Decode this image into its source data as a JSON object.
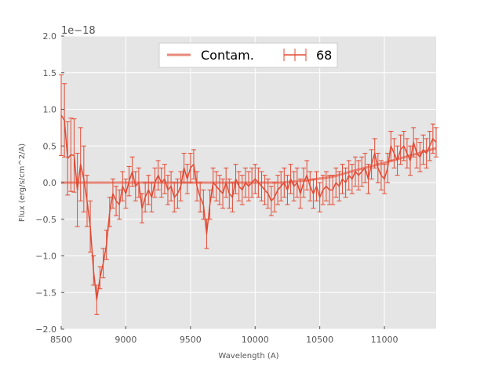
{
  "chart_data": {
    "type": "line",
    "title": "",
    "xlabel": "Wavelength (A)",
    "ylabel": "Flux (erg/s/cm^2/A)",
    "y_offset_label": "1e−18",
    "xlim": [
      8500,
      11400
    ],
    "ylim": [
      -2.0,
      2.0
    ],
    "x_ticks": [
      8500,
      9000,
      9500,
      10000,
      10500,
      11000
    ],
    "x_tick_labels": [
      "8500",
      "9000",
      "9500",
      "10000",
      "10500",
      "11000"
    ],
    "y_ticks": [
      -2.0,
      -1.5,
      -1.0,
      -0.5,
      0.0,
      0.5,
      1.0,
      1.5,
      2.0
    ],
    "y_tick_labels": [
      "−2.0",
      "−1.5",
      "−1.0",
      "−0.5",
      "0.0",
      "0.5",
      "1.0",
      "1.5",
      "2.0"
    ],
    "grid": true,
    "legend_position": "top-center",
    "colors": {
      "background": "#e5e5e5",
      "grid": "#ffffff",
      "contam": "#e8887a",
      "spectrum": "#e24a33"
    },
    "series": [
      {
        "name": "Contam.",
        "kind": "line",
        "x": [
          8500,
          10200,
          10400,
          10600,
          10800,
          11000,
          11200,
          11400
        ],
        "y": [
          0.0,
          0.0,
          0.03,
          0.08,
          0.18,
          0.27,
          0.37,
          0.47
        ]
      },
      {
        "name": "68",
        "kind": "errorbar",
        "x": [
          8500,
          8525,
          8550,
          8575,
          8600,
          8625,
          8650,
          8675,
          8700,
          8725,
          8750,
          8775,
          8800,
          8825,
          8850,
          8875,
          8900,
          8925,
          8950,
          8975,
          9000,
          9025,
          9050,
          9075,
          9100,
          9125,
          9150,
          9175,
          9200,
          9225,
          9250,
          9275,
          9300,
          9325,
          9350,
          9375,
          9400,
          9425,
          9450,
          9475,
          9500,
          9525,
          9550,
          9575,
          9600,
          9625,
          9650,
          9675,
          9700,
          9725,
          9750,
          9775,
          9800,
          9825,
          9850,
          9875,
          9900,
          9925,
          9950,
          9975,
          10000,
          10025,
          10050,
          10075,
          10100,
          10125,
          10150,
          10175,
          10200,
          10225,
          10250,
          10275,
          10300,
          10325,
          10350,
          10375,
          10400,
          10425,
          10450,
          10475,
          10500,
          10525,
          10550,
          10575,
          10600,
          10625,
          10650,
          10675,
          10700,
          10725,
          10750,
          10775,
          10800,
          10825,
          10850,
          10875,
          10900,
          10925,
          10950,
          10975,
          11000,
          11025,
          11050,
          11075,
          11100,
          11125,
          11150,
          11175,
          11200,
          11225,
          11250,
          11275,
          11300,
          11325,
          11350,
          11375,
          11400
        ],
        "y": [
          0.92,
          0.85,
          0.33,
          0.38,
          0.37,
          -0.1,
          0.25,
          0.05,
          -0.25,
          -0.6,
          -1.2,
          -1.6,
          -1.3,
          -1.1,
          -0.85,
          -0.4,
          -0.15,
          -0.25,
          -0.3,
          -0.05,
          -0.15,
          0.02,
          0.15,
          -0.05,
          0.0,
          -0.35,
          -0.2,
          -0.1,
          -0.2,
          0.0,
          0.1,
          0.0,
          0.05,
          -0.1,
          -0.05,
          -0.2,
          -0.15,
          -0.05,
          0.2,
          0.05,
          0.2,
          0.25,
          -0.05,
          -0.2,
          -0.3,
          -0.7,
          -0.3,
          0.0,
          -0.05,
          -0.1,
          -0.15,
          0.0,
          -0.15,
          -0.2,
          0.05,
          -0.05,
          -0.1,
          0.0,
          -0.05,
          0.0,
          0.05,
          0.0,
          -0.05,
          -0.1,
          -0.15,
          -0.25,
          -0.2,
          -0.1,
          -0.05,
          0.0,
          -0.1,
          0.05,
          -0.05,
          0.0,
          -0.15,
          0.0,
          0.1,
          -0.05,
          -0.15,
          -0.05,
          -0.2,
          -0.1,
          -0.05,
          -0.1,
          -0.1,
          0.0,
          -0.05,
          0.05,
          0.0,
          0.1,
          0.05,
          0.15,
          0.1,
          0.15,
          0.2,
          0.05,
          0.25,
          0.4,
          0.2,
          0.1,
          0.05,
          0.2,
          0.5,
          0.4,
          0.3,
          0.45,
          0.5,
          0.4,
          0.3,
          0.55,
          0.4,
          0.35,
          0.45,
          0.4,
          0.5,
          0.6,
          0.55
        ],
        "yerr": 0.2,
        "yerr_large": [
          0.55,
          0.5,
          0.5,
          0.5,
          0.5,
          0.5,
          0.5,
          0.45,
          0.35,
          0.35,
          0.2,
          0.2,
          0.15
        ]
      }
    ]
  }
}
